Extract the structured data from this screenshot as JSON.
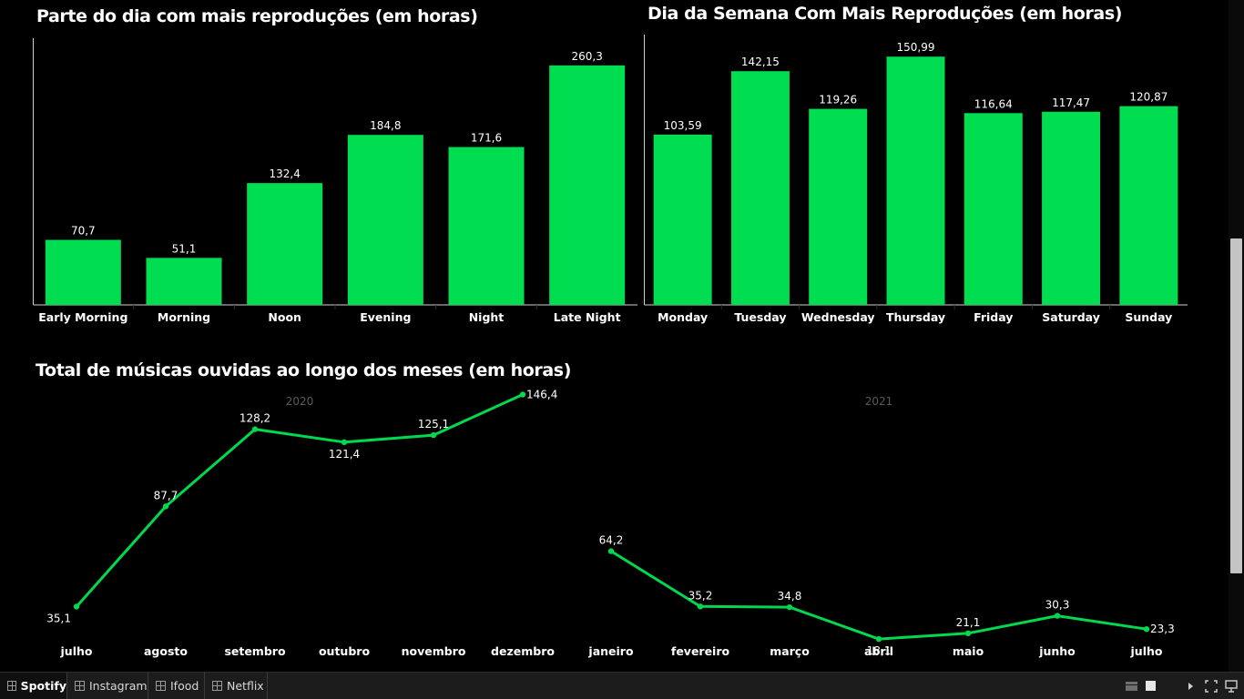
{
  "colors": {
    "bar": "#00dd50",
    "line": "#00d84e",
    "background": "#000000",
    "year_label": "#5a5a5a"
  },
  "charts": {
    "part_of_day": {
      "title": "Parte do dia com mais reproduções (em horas)"
    },
    "weekday": {
      "title": "Dia da Semana Com Mais Reproduções (em horas)"
    },
    "monthly": {
      "title": "Total de músicas ouvidas ao longo dos meses (em horas)"
    }
  },
  "chart_data": [
    {
      "type": "bar",
      "title": "Parte do dia com mais reproduções (em horas)",
      "categories": [
        "Early Morning",
        "Morning",
        "Noon",
        "Evening",
        "Night",
        "Late Night"
      ],
      "values": [
        70.7,
        51.1,
        132.4,
        184.8,
        171.6,
        260.3
      ],
      "labels": [
        "70,7",
        "51,1",
        "132,4",
        "184,8",
        "171,6",
        "260,3"
      ],
      "ylim": [
        0,
        275
      ]
    },
    {
      "type": "bar",
      "title": "Dia da Semana Com Mais Reproduções (em horas)",
      "categories": [
        "Monday",
        "Tuesday",
        "Wednesday",
        "Thursday",
        "Friday",
        "Saturday",
        "Sunday"
      ],
      "values": [
        103.59,
        142.15,
        119.26,
        150.99,
        116.64,
        117.47,
        120.87
      ],
      "labels": [
        "103,59",
        "142,15",
        "119,26",
        "150,99",
        "116,64",
        "117,47",
        "120,87"
      ],
      "ylim": [
        0,
        155
      ]
    },
    {
      "type": "line",
      "title": "Total de músicas ouvidas ao longo dos meses (em horas)",
      "panels": [
        {
          "year": "2020",
          "categories": [
            "julho",
            "agosto",
            "setembro",
            "outubro",
            "novembro",
            "dezembro"
          ],
          "values": [
            35.1,
            87.7,
            128.2,
            121.4,
            125.1,
            146.4
          ],
          "labels": [
            "35,1",
            "87,7",
            "128,2",
            "121,4",
            "125,1",
            "146,4"
          ]
        },
        {
          "year": "2021",
          "categories": [
            "janeiro",
            "fevereiro",
            "março",
            "abril",
            "maio",
            "junho",
            "julho"
          ],
          "values": [
            64.2,
            35.2,
            34.8,
            18.1,
            21.1,
            30.3,
            23.3
          ],
          "labels": [
            "64,2",
            "35,2",
            "34,8",
            "18,1",
            "21,1",
            "30,3",
            "23,3"
          ]
        }
      ],
      "ylim": [
        0,
        160
      ]
    }
  ],
  "tabs": [
    {
      "label": "Spotify",
      "active": true
    },
    {
      "label": "Instagram",
      "active": false
    },
    {
      "label": "Ifood",
      "active": false
    },
    {
      "label": "Netflix",
      "active": false
    }
  ]
}
